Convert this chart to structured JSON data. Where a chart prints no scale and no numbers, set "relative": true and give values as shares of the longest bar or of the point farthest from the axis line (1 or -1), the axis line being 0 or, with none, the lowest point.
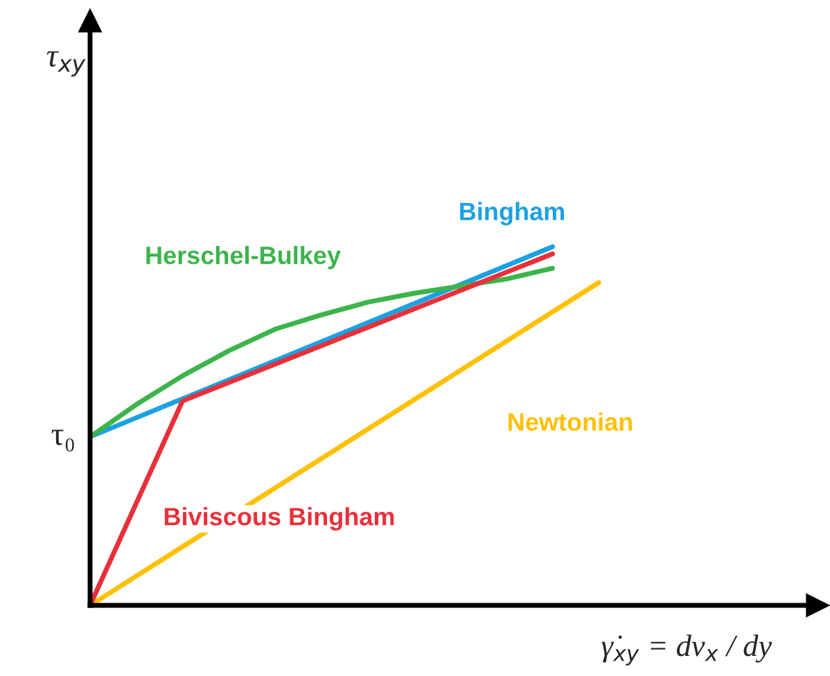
{
  "chart_data": {
    "type": "line",
    "relative": true,
    "xlabel": "γ̇$_{xy}$ = dv$_{x}$ / dy",
    "categories": [
      null,
      null,
      null,
      null,
      null,
      null,
      null,
      null,
      null,
      null,
      null,
      null
    ],
    "annotations": [
      "τ$_{xy}$",
      "τ₀"
    ],
    "marker": "none",
    "line_style": "solid",
    "grid": false,
    "legend": false,
    "series": [
      {
        "name": "Bingham",
        "color": "#1ba1e2",
        "values": [
          0.47,
          null,
          null,
          null,
          null,
          null,
          null,
          null,
          null,
          null,
          1.0,
          null
        ]
      },
      {
        "name": "Herschel-Bulkey",
        "color": "#3cb44b",
        "values": [
          0.47,
          0.56,
          0.64,
          0.71,
          0.77,
          0.81,
          0.845,
          0.87,
          0.89,
          0.91,
          0.94,
          null
        ]
      },
      {
        "name": "Newtonian",
        "color": "#ffc000",
        "values": [
          0,
          null,
          null,
          null,
          null,
          null,
          null,
          null,
          null,
          null,
          null,
          0.9
        ]
      },
      {
        "name": "Biviscous Bingham",
        "color": "#e8303a",
        "values": [
          0,
          null,
          0.57,
          null,
          null,
          null,
          null,
          null,
          null,
          null,
          0.98,
          null
        ]
      }
    ]
  }
}
